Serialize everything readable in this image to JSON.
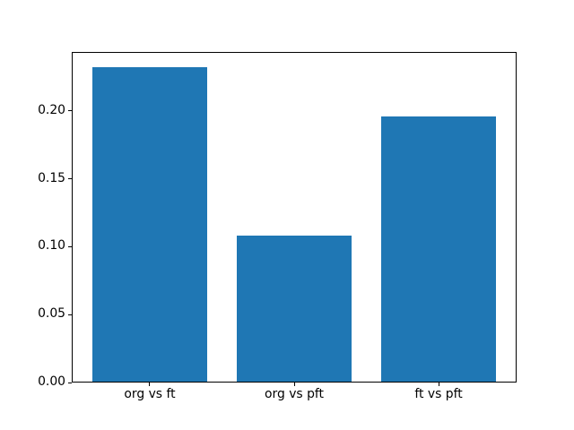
{
  "figure": {
    "background": "#ffffff",
    "frame_color": "#000000",
    "tick_color": "#000000",
    "text_color": "#000000"
  },
  "chart_data": {
    "type": "bar",
    "title": "",
    "xlabel": "",
    "ylabel": "",
    "categories": [
      "org vs ft",
      "org vs pft",
      "ft vs pft"
    ],
    "values": [
      0.232,
      0.108,
      0.196
    ],
    "bar_color": "#1f77b4",
    "bar_width_fraction": 0.8,
    "xlim": [
      -0.54,
      2.54
    ],
    "ylim": [
      0,
      0.2436
    ],
    "yticks": [
      0,
      0.05,
      0.1,
      0.15,
      0.2
    ],
    "ytick_labels": [
      "0.00",
      "0.05",
      "0.10",
      "0.15",
      "0.20"
    ],
    "grid": false,
    "legend": false
  }
}
